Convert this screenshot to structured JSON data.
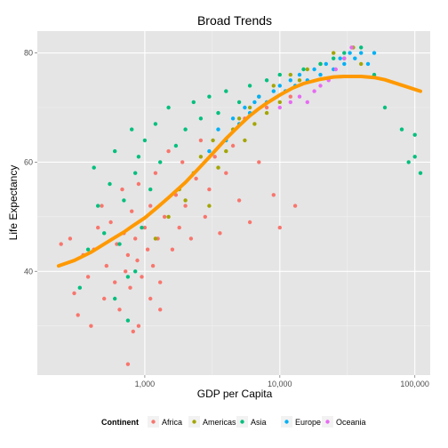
{
  "chart_data": {
    "type": "scatter",
    "title": "Broad Trends",
    "xlabel": "GDP per Capita",
    "ylabel": "Life Expectancy",
    "x_scale": "log10",
    "xlim": [
      160,
      130000
    ],
    "ylim": [
      21,
      84
    ],
    "x_ticks": [
      {
        "value": 1000,
        "label": "1,000"
      },
      {
        "value": 10000,
        "label": "10,000"
      },
      {
        "value": 100000,
        "label": "100,000"
      }
    ],
    "y_ticks": [
      {
        "value": 40,
        "label": "40"
      },
      {
        "value": 60,
        "label": "60"
      },
      {
        "value": 80,
        "label": "80"
      }
    ],
    "grid": true,
    "legend_position": "bottom",
    "legend_title": "Continent",
    "series": [
      {
        "name": "Africa",
        "color": "#F8766D",
        "points": [
          [
            240,
            45
          ],
          [
            280,
            46
          ],
          [
            300,
            36
          ],
          [
            320,
            32
          ],
          [
            350,
            43
          ],
          [
            380,
            39
          ],
          [
            400,
            30
          ],
          [
            420,
            44
          ],
          [
            450,
            48
          ],
          [
            480,
            52
          ],
          [
            500,
            35
          ],
          [
            520,
            41
          ],
          [
            560,
            49
          ],
          [
            600,
            38
          ],
          [
            620,
            45
          ],
          [
            650,
            33
          ],
          [
            680,
            55
          ],
          [
            700,
            47
          ],
          [
            720,
            40
          ],
          [
            750,
            43
          ],
          [
            780,
            37
          ],
          [
            800,
            51
          ],
          [
            820,
            29
          ],
          [
            850,
            46
          ],
          [
            880,
            42
          ],
          [
            900,
            56
          ],
          [
            950,
            39
          ],
          [
            1000,
            48
          ],
          [
            1050,
            44
          ],
          [
            1100,
            52
          ],
          [
            1150,
            41
          ],
          [
            1200,
            58
          ],
          [
            1250,
            46
          ],
          [
            1300,
            38
          ],
          [
            1400,
            50
          ],
          [
            1500,
            62
          ],
          [
            1600,
            44
          ],
          [
            1700,
            54
          ],
          [
            1800,
            48
          ],
          [
            1900,
            60
          ],
          [
            2000,
            52
          ],
          [
            2200,
            46
          ],
          [
            2400,
            57
          ],
          [
            2600,
            64
          ],
          [
            2800,
            50
          ],
          [
            3000,
            55
          ],
          [
            3300,
            61
          ],
          [
            3600,
            47
          ],
          [
            4000,
            58
          ],
          [
            4500,
            63
          ],
          [
            5000,
            53
          ],
          [
            5500,
            68
          ],
          [
            6000,
            49
          ],
          [
            7000,
            60
          ],
          [
            8000,
            70
          ],
          [
            9000,
            54
          ],
          [
            10000,
            48
          ],
          [
            12000,
            72
          ],
          [
            13000,
            52
          ],
          [
            750,
            23
          ],
          [
            1100,
            35
          ],
          [
            900,
            30
          ],
          [
            1300,
            33
          ]
        ]
      },
      {
        "name": "Americas",
        "color": "#A3A500",
        "points": [
          [
            1200,
            46
          ],
          [
            1500,
            50
          ],
          [
            1800,
            55
          ],
          [
            2000,
            53
          ],
          [
            2300,
            58
          ],
          [
            2600,
            61
          ],
          [
            3000,
            52
          ],
          [
            3200,
            64
          ],
          [
            3500,
            59
          ],
          [
            4000,
            62
          ],
          [
            4500,
            66
          ],
          [
            5000,
            68
          ],
          [
            5500,
            64
          ],
          [
            6000,
            70
          ],
          [
            6500,
            67
          ],
          [
            7000,
            72
          ],
          [
            8000,
            69
          ],
          [
            9000,
            74
          ],
          [
            10000,
            71
          ],
          [
            11000,
            73
          ],
          [
            12000,
            76
          ],
          [
            14000,
            75
          ],
          [
            16000,
            77
          ],
          [
            20000,
            78
          ],
          [
            25000,
            80
          ],
          [
            30000,
            79
          ],
          [
            35000,
            81
          ],
          [
            40000,
            78
          ]
        ]
      },
      {
        "name": "Asia",
        "color": "#00BF7D",
        "points": [
          [
            330,
            37
          ],
          [
            380,
            44
          ],
          [
            420,
            59
          ],
          [
            450,
            52
          ],
          [
            500,
            47
          ],
          [
            550,
            56
          ],
          [
            600,
            62
          ],
          [
            650,
            45
          ],
          [
            700,
            53
          ],
          [
            750,
            39
          ],
          [
            800,
            66
          ],
          [
            850,
            58
          ],
          [
            900,
            61
          ],
          [
            950,
            48
          ],
          [
            1000,
            64
          ],
          [
            1100,
            55
          ],
          [
            1200,
            67
          ],
          [
            1300,
            60
          ],
          [
            1500,
            70
          ],
          [
            1700,
            63
          ],
          [
            2000,
            66
          ],
          [
            2300,
            71
          ],
          [
            2600,
            68
          ],
          [
            3000,
            72
          ],
          [
            3500,
            69
          ],
          [
            4000,
            73
          ],
          [
            5000,
            71
          ],
          [
            6000,
            74
          ],
          [
            8000,
            75
          ],
          [
            10000,
            76
          ],
          [
            15000,
            77
          ],
          [
            20000,
            78
          ],
          [
            25000,
            79
          ],
          [
            30000,
            80
          ],
          [
            40000,
            81
          ],
          [
            50000,
            76
          ],
          [
            60000,
            70
          ],
          [
            80000,
            66
          ],
          [
            100000,
            65
          ],
          [
            110000,
            58
          ],
          [
            90000,
            60
          ],
          [
            100000,
            61
          ],
          [
            750,
            31
          ],
          [
            850,
            40
          ],
          [
            600,
            35
          ]
        ]
      },
      {
        "name": "Europe",
        "color": "#00B0F6",
        "points": [
          [
            3000,
            62
          ],
          [
            3500,
            66
          ],
          [
            4000,
            64
          ],
          [
            4500,
            68
          ],
          [
            5000,
            67
          ],
          [
            5500,
            70
          ],
          [
            6000,
            69
          ],
          [
            6500,
            71
          ],
          [
            7000,
            72
          ],
          [
            8000,
            71
          ],
          [
            9000,
            73
          ],
          [
            10000,
            74
          ],
          [
            11000,
            73
          ],
          [
            12000,
            75
          ],
          [
            13000,
            74
          ],
          [
            14000,
            76
          ],
          [
            16000,
            75
          ],
          [
            18000,
            77
          ],
          [
            20000,
            76
          ],
          [
            22000,
            78
          ],
          [
            25000,
            77
          ],
          [
            28000,
            79
          ],
          [
            30000,
            78
          ],
          [
            33000,
            80
          ],
          [
            36000,
            79
          ],
          [
            40000,
            80
          ],
          [
            45000,
            78
          ],
          [
            50000,
            80
          ]
        ]
      },
      {
        "name": "Oceania",
        "color": "#E76BF3",
        "points": [
          [
            10000,
            70
          ],
          [
            12000,
            71
          ],
          [
            14000,
            72
          ],
          [
            16000,
            71
          ],
          [
            18000,
            73
          ],
          [
            20000,
            74
          ],
          [
            23000,
            75
          ],
          [
            26000,
            77
          ],
          [
            30000,
            79
          ],
          [
            34000,
            81
          ]
        ]
      }
    ],
    "trend": {
      "name": "smooth",
      "color": "#FF9900",
      "points": [
        [
          230,
          41
        ],
        [
          300,
          42
        ],
        [
          400,
          43.5
        ],
        [
          500,
          45
        ],
        [
          600,
          46.2
        ],
        [
          700,
          47.2
        ],
        [
          800,
          48.2
        ],
        [
          1000,
          49.8
        ],
        [
          1250,
          51.8
        ],
        [
          1500,
          53.5
        ],
        [
          2000,
          56.3
        ],
        [
          2500,
          58.8
        ],
        [
          3000,
          60.9
        ],
        [
          4000,
          64.3
        ],
        [
          5000,
          66.7
        ],
        [
          6000,
          68.5
        ],
        [
          7000,
          69.8
        ],
        [
          8000,
          70.8
        ],
        [
          10000,
          72.3
        ],
        [
          12500,
          73.6
        ],
        [
          15000,
          74.4
        ],
        [
          20000,
          75.2
        ],
        [
          25000,
          75.6
        ],
        [
          30000,
          75.7
        ],
        [
          40000,
          75.7
        ],
        [
          50000,
          75.5
        ],
        [
          60000,
          75.1
        ],
        [
          80000,
          74.1
        ],
        [
          110000,
          73
        ]
      ]
    }
  }
}
